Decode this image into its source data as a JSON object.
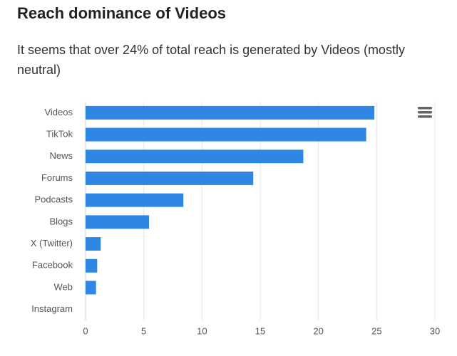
{
  "chart_data": {
    "type": "hbar",
    "title": "Reach dominance of Videos",
    "subtitle": "It seems that over 24% of total reach is generated by Videos (mostly neutral)",
    "categories": [
      "Videos",
      "TikTok",
      "News",
      "Forums",
      "Podcasts",
      "Blogs",
      "X (Twitter)",
      "Facebook",
      "Web",
      "Instagram"
    ],
    "values": [
      24.8,
      24.1,
      18.7,
      14.4,
      8.4,
      5.45,
      1.3,
      1.0,
      0.9,
      0
    ],
    "color": "#2f86e3",
    "xlim": [
      0,
      30
    ],
    "xticks": [
      0,
      5,
      10,
      15,
      20,
      25,
      30
    ],
    "grid": true
  }
}
